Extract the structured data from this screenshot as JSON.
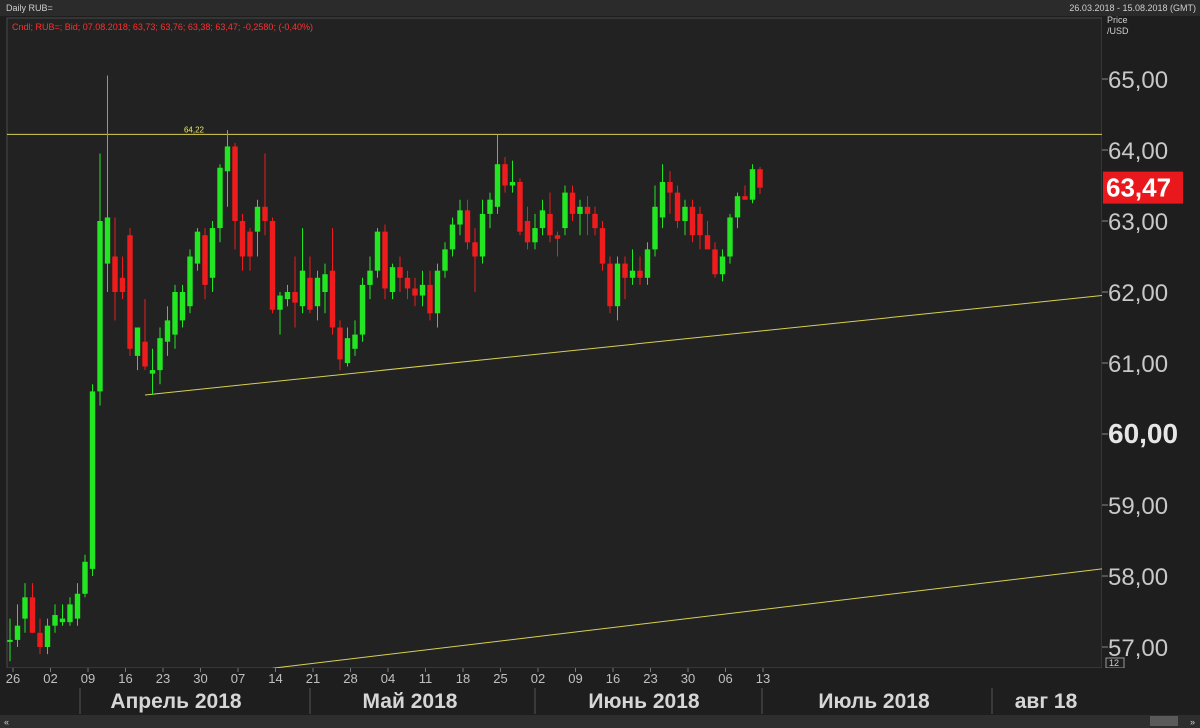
{
  "header": {
    "title": "Daily RUB=",
    "date_range": "26.03.2018 - 15.08.2018 (GMT)",
    "legend_text": "Cndl; RUB=; Bid; 07.08.2018; 63,73; 63,76; 63,38; 63,47; -0,2580; (-0,40%)"
  },
  "axis": {
    "price_label_1": "Price",
    "price_label_2": "/USD",
    "corner_badge": "12"
  },
  "current_price": "63,47",
  "hline_label": "64,22",
  "colors": {
    "up": "#22e622",
    "down": "#ee1c1c",
    "trendline": "#d8d050",
    "current_bg": "#e8181c"
  },
  "chart_data": {
    "type": "candlestick",
    "ylim": [
      56.7,
      65.9
    ],
    "y_ticks": [
      "57,00",
      "58,00",
      "59,00",
      "60,00",
      "61,00",
      "62,00",
      "63,00",
      "64,00",
      "65,00"
    ],
    "x_ticks": [
      "26",
      "02",
      "09",
      "16",
      "23",
      "30",
      "07",
      "14",
      "21",
      "28",
      "04",
      "11",
      "18",
      "25",
      "02",
      "09",
      "16",
      "23",
      "30",
      "06",
      "13"
    ],
    "months": [
      "Апрель 2018",
      "Май 2018",
      "Июнь 2018",
      "Июль 2018",
      "авг 18"
    ],
    "horizontal_line": 64.22,
    "trendlines": [
      {
        "from": {
          "day": 18,
          "price": 60.55
        },
        "to": {
          "day": 97,
          "price": 61.95
        }
      },
      {
        "from": {
          "day": 35,
          "price": 56.7
        },
        "to": {
          "day": 97,
          "price": 58.1
        }
      }
    ],
    "candles": [
      {
        "d": 0,
        "o": 57.1,
        "h": 57.4,
        "l": 56.8,
        "c": 57.1
      },
      {
        "d": 1,
        "o": 57.1,
        "h": 57.6,
        "l": 57.0,
        "c": 57.3
      },
      {
        "d": 2,
        "o": 57.4,
        "h": 57.9,
        "l": 57.2,
        "c": 57.7
      },
      {
        "d": 3,
        "o": 57.7,
        "h": 57.9,
        "l": 57.2,
        "c": 57.2
      },
      {
        "d": 4,
        "o": 57.2,
        "h": 57.4,
        "l": 56.9,
        "c": 57.0
      },
      {
        "d": 5,
        "o": 57.0,
        "h": 57.4,
        "l": 56.9,
        "c": 57.3
      },
      {
        "d": 6,
        "o": 57.3,
        "h": 57.6,
        "l": 57.2,
        "c": 57.45
      },
      {
        "d": 7,
        "o": 57.35,
        "h": 57.6,
        "l": 57.3,
        "c": 57.4
      },
      {
        "d": 8,
        "o": 57.35,
        "h": 57.7,
        "l": 57.3,
        "c": 57.6
      },
      {
        "d": 9,
        "o": 57.4,
        "h": 57.9,
        "l": 57.3,
        "c": 57.75
      },
      {
        "d": 10,
        "o": 57.75,
        "h": 58.3,
        "l": 57.7,
        "c": 58.2
      },
      {
        "d": 11,
        "o": 58.1,
        "h": 60.7,
        "l": 58.0,
        "c": 60.6
      },
      {
        "d": 12,
        "o": 60.6,
        "h": 63.95,
        "l": 60.4,
        "c": 63.0
      },
      {
        "d": 13,
        "o": 62.4,
        "h": 65.05,
        "l": 62.0,
        "c": 63.05
      },
      {
        "d": 14,
        "o": 62.5,
        "h": 63.05,
        "l": 61.6,
        "c": 62.0
      },
      {
        "d": 15,
        "o": 62.2,
        "h": 62.5,
        "l": 61.9,
        "c": 62.0
      },
      {
        "d": 16,
        "o": 62.8,
        "h": 62.9,
        "l": 61.1,
        "c": 61.2
      },
      {
        "d": 17,
        "o": 61.1,
        "h": 61.5,
        "l": 60.9,
        "c": 61.5
      },
      {
        "d": 18,
        "o": 61.3,
        "h": 61.9,
        "l": 60.9,
        "c": 60.95
      },
      {
        "d": 19,
        "o": 60.85,
        "h": 61.2,
        "l": 60.55,
        "c": 60.9
      },
      {
        "d": 20,
        "o": 60.9,
        "h": 61.5,
        "l": 60.7,
        "c": 61.35
      },
      {
        "d": 21,
        "o": 61.3,
        "h": 61.8,
        "l": 61.1,
        "c": 61.6
      },
      {
        "d": 22,
        "o": 61.4,
        "h": 62.1,
        "l": 61.2,
        "c": 62.0
      },
      {
        "d": 23,
        "o": 61.6,
        "h": 62.1,
        "l": 61.5,
        "c": 62.0
      },
      {
        "d": 24,
        "o": 61.8,
        "h": 62.6,
        "l": 61.7,
        "c": 62.5
      },
      {
        "d": 25,
        "o": 62.4,
        "h": 62.9,
        "l": 62.3,
        "c": 62.85
      },
      {
        "d": 26,
        "o": 62.8,
        "h": 62.9,
        "l": 61.9,
        "c": 62.1
      },
      {
        "d": 27,
        "o": 62.2,
        "h": 63.0,
        "l": 62.0,
        "c": 62.9
      },
      {
        "d": 28,
        "o": 62.9,
        "h": 63.8,
        "l": 62.7,
        "c": 63.75
      },
      {
        "d": 29,
        "o": 63.7,
        "h": 64.28,
        "l": 63.2,
        "c": 64.05
      },
      {
        "d": 30,
        "o": 64.05,
        "h": 64.1,
        "l": 62.6,
        "c": 63.0
      },
      {
        "d": 31,
        "o": 63.0,
        "h": 63.1,
        "l": 62.3,
        "c": 62.5
      },
      {
        "d": 32,
        "o": 62.85,
        "h": 62.9,
        "l": 62.3,
        "c": 62.5
      },
      {
        "d": 33,
        "o": 62.85,
        "h": 63.3,
        "l": 62.5,
        "c": 63.2
      },
      {
        "d": 34,
        "o": 63.2,
        "h": 63.95,
        "l": 62.8,
        "c": 63.0
      },
      {
        "d": 35,
        "o": 63.0,
        "h": 63.05,
        "l": 61.7,
        "c": 61.75
      },
      {
        "d": 36,
        "o": 61.75,
        "h": 62.0,
        "l": 61.4,
        "c": 61.95
      },
      {
        "d": 37,
        "o": 61.9,
        "h": 62.1,
        "l": 61.8,
        "c": 62.0
      },
      {
        "d": 38,
        "o": 62.0,
        "h": 62.5,
        "l": 61.5,
        "c": 61.85
      },
      {
        "d": 39,
        "o": 61.8,
        "h": 62.9,
        "l": 61.7,
        "c": 62.3
      },
      {
        "d": 40,
        "o": 62.2,
        "h": 62.5,
        "l": 61.7,
        "c": 61.75
      },
      {
        "d": 41,
        "o": 61.8,
        "h": 62.3,
        "l": 61.6,
        "c": 62.2
      },
      {
        "d": 42,
        "o": 62.0,
        "h": 62.4,
        "l": 61.7,
        "c": 62.25
      },
      {
        "d": 43,
        "o": 62.3,
        "h": 62.9,
        "l": 61.4,
        "c": 61.5
      },
      {
        "d": 44,
        "o": 61.5,
        "h": 61.6,
        "l": 60.9,
        "c": 61.05
      },
      {
        "d": 45,
        "o": 61.0,
        "h": 61.5,
        "l": 60.95,
        "c": 61.35
      },
      {
        "d": 46,
        "o": 61.2,
        "h": 61.6,
        "l": 61.1,
        "c": 61.4
      },
      {
        "d": 47,
        "o": 61.4,
        "h": 62.2,
        "l": 61.3,
        "c": 62.1
      },
      {
        "d": 48,
        "o": 62.1,
        "h": 62.5,
        "l": 61.9,
        "c": 62.3
      },
      {
        "d": 49,
        "o": 62.3,
        "h": 62.9,
        "l": 62.2,
        "c": 62.85
      },
      {
        "d": 50,
        "o": 62.85,
        "h": 62.95,
        "l": 61.9,
        "c": 62.05
      },
      {
        "d": 51,
        "o": 62.0,
        "h": 62.4,
        "l": 61.9,
        "c": 62.35
      },
      {
        "d": 52,
        "o": 62.35,
        "h": 62.5,
        "l": 62.0,
        "c": 62.2
      },
      {
        "d": 53,
        "o": 62.2,
        "h": 62.3,
        "l": 61.9,
        "c": 62.05
      },
      {
        "d": 54,
        "o": 62.05,
        "h": 62.2,
        "l": 61.8,
        "c": 61.95
      },
      {
        "d": 55,
        "o": 61.95,
        "h": 62.3,
        "l": 61.8,
        "c": 62.1
      },
      {
        "d": 56,
        "o": 62.1,
        "h": 62.3,
        "l": 61.6,
        "c": 61.7
      },
      {
        "d": 57,
        "o": 61.7,
        "h": 62.4,
        "l": 61.5,
        "c": 62.3
      },
      {
        "d": 58,
        "o": 62.3,
        "h": 62.7,
        "l": 62.2,
        "c": 62.6
      },
      {
        "d": 59,
        "o": 62.6,
        "h": 63.05,
        "l": 62.5,
        "c": 62.95
      },
      {
        "d": 60,
        "o": 62.95,
        "h": 63.3,
        "l": 62.8,
        "c": 63.15
      },
      {
        "d": 61,
        "o": 63.15,
        "h": 63.3,
        "l": 62.6,
        "c": 62.7
      },
      {
        "d": 62,
        "o": 62.7,
        "h": 62.9,
        "l": 62.0,
        "c": 62.5
      },
      {
        "d": 63,
        "o": 62.5,
        "h": 63.3,
        "l": 62.4,
        "c": 63.1
      },
      {
        "d": 64,
        "o": 63.1,
        "h": 63.4,
        "l": 62.9,
        "c": 63.3
      },
      {
        "d": 65,
        "o": 63.2,
        "h": 64.22,
        "l": 63.1,
        "c": 63.8
      },
      {
        "d": 66,
        "o": 63.8,
        "h": 63.9,
        "l": 63.4,
        "c": 63.5
      },
      {
        "d": 67,
        "o": 63.5,
        "h": 63.85,
        "l": 63.4,
        "c": 63.55
      },
      {
        "d": 68,
        "o": 63.55,
        "h": 63.6,
        "l": 62.8,
        "c": 62.85
      },
      {
        "d": 69,
        "o": 63.0,
        "h": 63.2,
        "l": 62.6,
        "c": 62.7
      },
      {
        "d": 70,
        "o": 62.7,
        "h": 63.1,
        "l": 62.6,
        "c": 62.9
      },
      {
        "d": 71,
        "o": 62.9,
        "h": 63.3,
        "l": 62.8,
        "c": 63.15
      },
      {
        "d": 72,
        "o": 63.1,
        "h": 63.4,
        "l": 62.7,
        "c": 62.8
      },
      {
        "d": 73,
        "o": 62.8,
        "h": 62.85,
        "l": 62.5,
        "c": 62.75
      },
      {
        "d": 74,
        "o": 62.9,
        "h": 63.5,
        "l": 62.8,
        "c": 63.4
      },
      {
        "d": 75,
        "o": 63.4,
        "h": 63.5,
        "l": 63.0,
        "c": 63.1
      },
      {
        "d": 76,
        "o": 63.1,
        "h": 63.3,
        "l": 62.8,
        "c": 63.2
      },
      {
        "d": 77,
        "o": 63.2,
        "h": 63.35,
        "l": 62.8,
        "c": 63.1
      },
      {
        "d": 78,
        "o": 63.1,
        "h": 63.2,
        "l": 62.8,
        "c": 62.9
      },
      {
        "d": 79,
        "o": 62.9,
        "h": 63.0,
        "l": 62.3,
        "c": 62.4
      },
      {
        "d": 80,
        "o": 62.4,
        "h": 62.5,
        "l": 61.7,
        "c": 61.8
      },
      {
        "d": 81,
        "o": 61.8,
        "h": 62.5,
        "l": 61.6,
        "c": 62.4
      },
      {
        "d": 82,
        "o": 62.4,
        "h": 62.5,
        "l": 61.9,
        "c": 62.2
      },
      {
        "d": 83,
        "o": 62.2,
        "h": 62.6,
        "l": 62.1,
        "c": 62.3
      },
      {
        "d": 84,
        "o": 62.3,
        "h": 62.5,
        "l": 62.1,
        "c": 62.2
      },
      {
        "d": 85,
        "o": 62.2,
        "h": 62.7,
        "l": 62.1,
        "c": 62.6
      },
      {
        "d": 86,
        "o": 62.6,
        "h": 63.5,
        "l": 62.5,
        "c": 63.2
      },
      {
        "d": 87,
        "o": 63.05,
        "h": 63.8,
        "l": 62.9,
        "c": 63.55
      },
      {
        "d": 88,
        "o": 63.55,
        "h": 63.7,
        "l": 63.1,
        "c": 63.4
      },
      {
        "d": 89,
        "o": 63.4,
        "h": 63.5,
        "l": 62.9,
        "c": 63.0
      },
      {
        "d": 90,
        "o": 63.0,
        "h": 63.3,
        "l": 62.8,
        "c": 63.2
      },
      {
        "d": 91,
        "o": 63.2,
        "h": 63.3,
        "l": 62.7,
        "c": 62.8
      },
      {
        "d": 92,
        "o": 63.1,
        "h": 63.2,
        "l": 62.6,
        "c": 62.8
      },
      {
        "d": 93,
        "o": 62.8,
        "h": 63.0,
        "l": 62.6,
        "c": 62.6
      },
      {
        "d": 94,
        "o": 62.6,
        "h": 62.7,
        "l": 62.2,
        "c": 62.25
      },
      {
        "d": 95,
        "o": 62.25,
        "h": 62.6,
        "l": 62.15,
        "c": 62.5
      },
      {
        "d": 96,
        "o": 62.5,
        "h": 63.1,
        "l": 62.4,
        "c": 63.05
      },
      {
        "d": 97,
        "o": 63.05,
        "h": 63.4,
        "l": 62.9,
        "c": 63.35
      },
      {
        "d": 98,
        "o": 63.35,
        "h": 63.5,
        "l": 63.3,
        "c": 63.3
      },
      {
        "d": 99,
        "o": 63.3,
        "h": 63.8,
        "l": 63.25,
        "c": 63.73
      },
      {
        "d": 100,
        "o": 63.73,
        "h": 63.76,
        "l": 63.38,
        "c": 63.47
      }
    ]
  }
}
